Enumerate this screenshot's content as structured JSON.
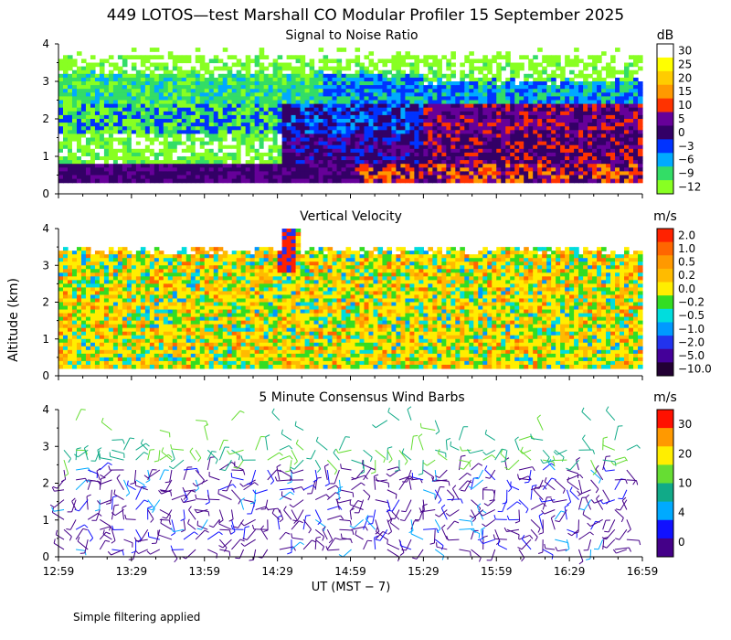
{
  "title": "449 LOTOS—test Marshall CO Modular Profiler 15 September 2025",
  "ylabel": "Altitude (km)",
  "xlabel": "UT  (MST − 7)",
  "footnote": "Simple filtering applied",
  "x_ticks": [
    "12:59",
    "13:29",
    "13:59",
    "14:29",
    "14:59",
    "15:29",
    "15:59",
    "16:29",
    "16:59"
  ],
  "y_ticks": [
    "0",
    "1",
    "2",
    "3",
    "4"
  ],
  "chart_data": [
    {
      "type": "heatmap",
      "title": "Signal to Noise Ratio",
      "unit": "dB",
      "x_range": [
        "12:59",
        "16:59"
      ],
      "ylim": [
        0,
        4
      ],
      "colorbar_labels": [
        "30",
        "25",
        "20",
        "15",
        "10",
        "5",
        "0",
        "−3",
        "−6",
        "−9",
        "−12"
      ],
      "colorbar_colors": [
        "#ffffff",
        "#ffff00",
        "#ffcc00",
        "#ff9900",
        "#ff3300",
        "#660099",
        "#330066",
        "#0033ff",
        "#00aaff",
        "#33dd66",
        "#88ff22"
      ]
    },
    {
      "type": "heatmap",
      "title": "Vertical Velocity",
      "unit": "m/s",
      "x_range": [
        "12:59",
        "16:59"
      ],
      "ylim": [
        0,
        4
      ],
      "colorbar_labels": [
        "2.0",
        "1.0",
        "0.5",
        "0.2",
        "0.0",
        "−0.2",
        "−0.5",
        "−1.0",
        "−2.0",
        "−5.0",
        "−10.0"
      ],
      "colorbar_colors": [
        "#ff2200",
        "#ff6600",
        "#ff9900",
        "#ffbb00",
        "#ffee00",
        "#33dd22",
        "#00dddd",
        "#0099ff",
        "#2233ee",
        "#440099",
        "#220033"
      ]
    },
    {
      "type": "scatter",
      "title": "5 Minute Consensus Wind Barbs",
      "unit": "m/s",
      "x_range": [
        "12:59",
        "16:59"
      ],
      "ylim": [
        0,
        4
      ],
      "colorbar_labels": [
        "30",
        "20",
        "10",
        "4",
        "0"
      ],
      "colorbar_colors": [
        "#ff1100",
        "#ff9900",
        "#ffee00",
        "#66dd33",
        "#11aa88",
        "#00aaff",
        "#1111ff",
        "#440088"
      ]
    }
  ]
}
